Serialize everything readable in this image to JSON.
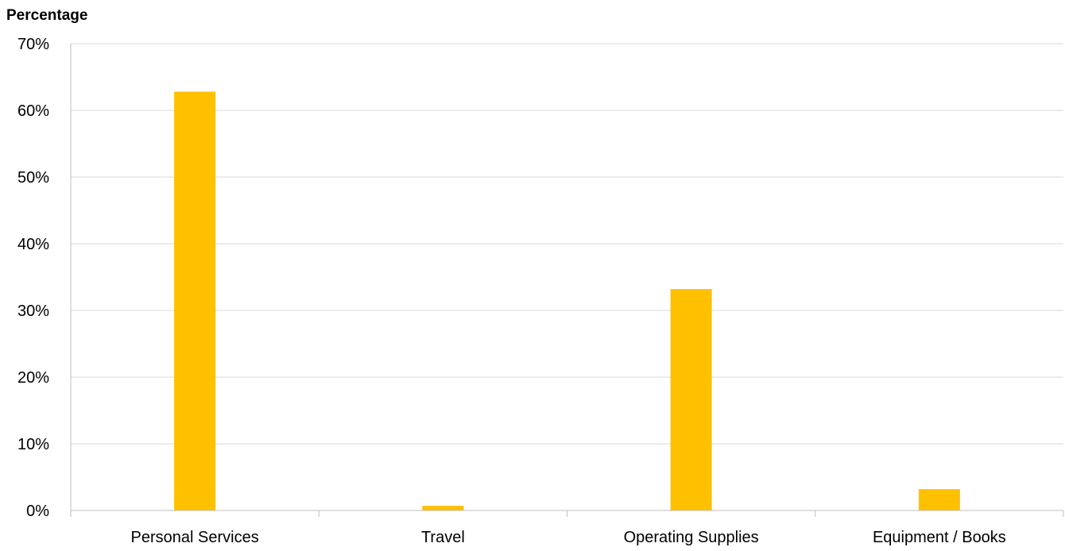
{
  "chart_data": {
    "type": "bar",
    "ylabel": "Percentage",
    "xlabel": "",
    "categories": [
      "Personal Services",
      "Travel",
      "Operating Supplies",
      "Equipment / Books"
    ],
    "series": [
      {
        "values": [
          62.8,
          0.7,
          33.2,
          3.2
        ],
        "color": "#FFC000"
      }
    ],
    "ylim": [
      0,
      70
    ],
    "yticks": [
      0,
      10,
      20,
      30,
      40,
      50,
      60,
      70
    ],
    "ytick_labels": [
      "0%",
      "10%",
      "20%",
      "30%",
      "40%",
      "50%",
      "60%",
      "70%"
    ],
    "grid": true,
    "legend": "none"
  }
}
